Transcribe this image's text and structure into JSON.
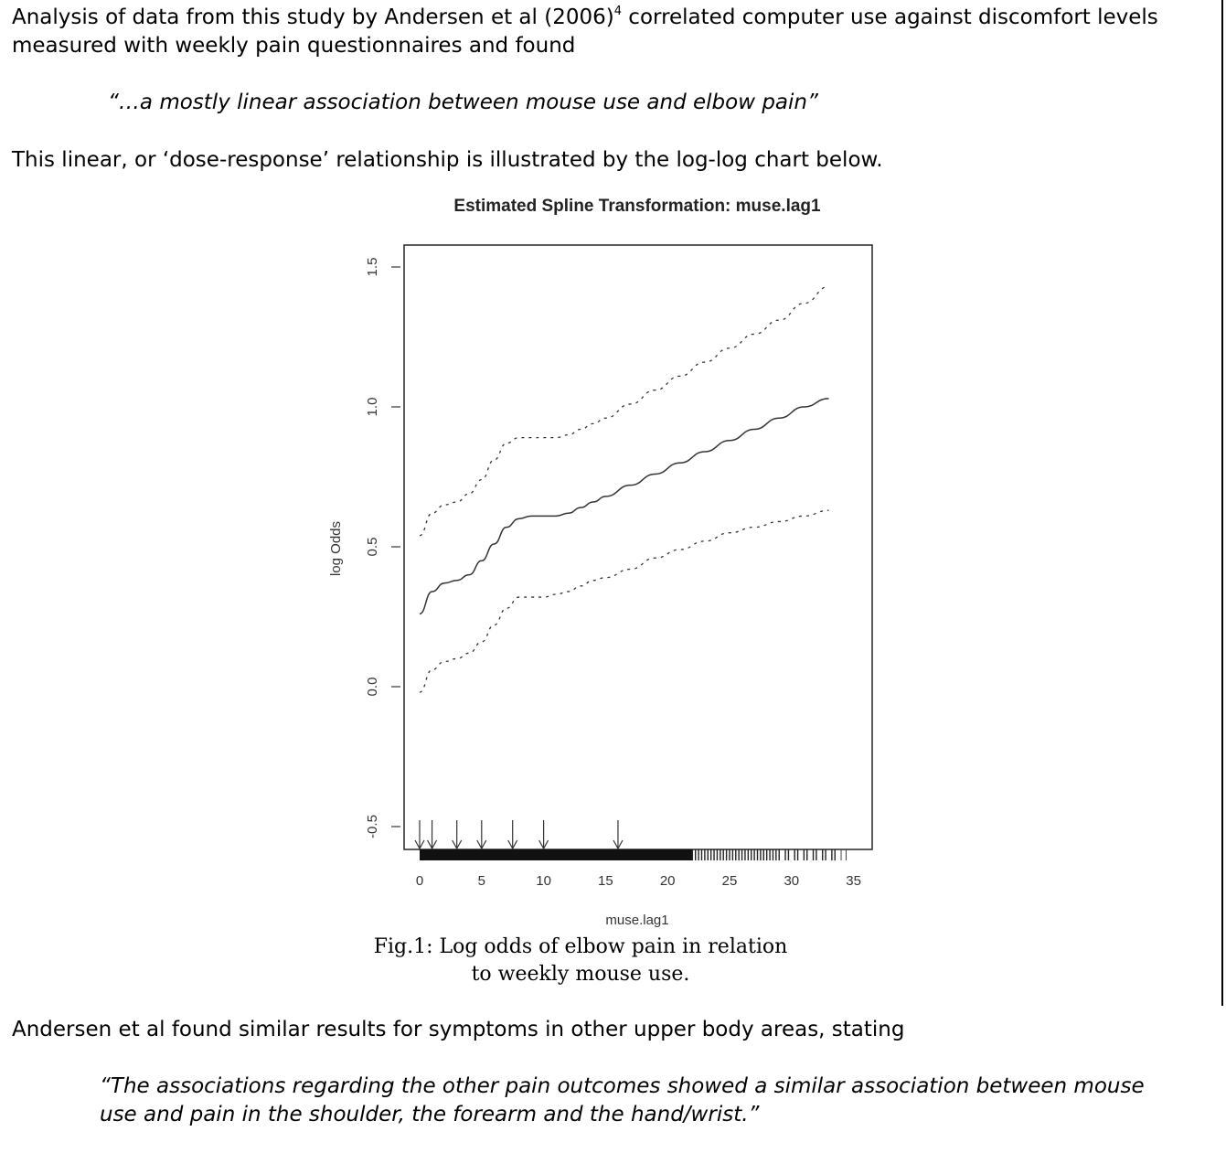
{
  "intro": {
    "line1_pre": "Analysis of data from this study by Andersen et al (2006)",
    "ref": "4",
    "line1_post": " correlated computer use against discomfort levels",
    "line2": "measured with weekly pain questionnaires and found"
  },
  "quote1": "“…a mostly linear association between mouse use and elbow pain”",
  "para2": "This linear, or ‘dose-response’ relationship is illustrated by the log-log chart below.",
  "figure": {
    "caption_line1": "Fig.1: Log odds of elbow pain in relation",
    "caption_line2": "to weekly mouse use."
  },
  "para3": "Andersen et al found similar results for symptoms in other upper body areas, stating",
  "quote2": {
    "line1": "“The associations regarding the other pain outcomes showed a similar association between mouse",
    "line2": "use and pain in the shoulder, the forearm and the hand/wrist.”"
  },
  "chart_data": {
    "type": "line",
    "title": "Estimated Spline Transformation: muse.lag1",
    "xlabel": "muse.lag1",
    "ylabel": "log Odds",
    "xlim": [
      0,
      35
    ],
    "ylim": [
      -0.5,
      1.5
    ],
    "x_ticks": [
      "0",
      "5",
      "10",
      "15",
      "20",
      "25",
      "30",
      "35"
    ],
    "y_ticks": [
      "-0.5",
      "0.0",
      "0.5",
      "1.0",
      "1.5"
    ],
    "series": [
      {
        "role": "estimate",
        "style": "solid",
        "x": [
          0,
          1,
          2,
          3,
          4,
          5,
          6,
          7,
          8,
          9,
          10,
          11,
          12,
          13,
          14,
          15,
          17,
          19,
          21,
          23,
          25,
          27,
          29,
          31,
          33
        ],
        "y": [
          0.26,
          0.34,
          0.37,
          0.38,
          0.4,
          0.45,
          0.51,
          0.57,
          0.6,
          0.61,
          0.61,
          0.61,
          0.62,
          0.64,
          0.66,
          0.68,
          0.72,
          0.76,
          0.8,
          0.84,
          0.88,
          0.92,
          0.96,
          1.0,
          1.03
        ]
      },
      {
        "role": "upper bound",
        "style": "dashed",
        "x": [
          0,
          1,
          2,
          3,
          4,
          5,
          6,
          7,
          8,
          9,
          10,
          11,
          12,
          13,
          14,
          15,
          17,
          19,
          21,
          23,
          25,
          27,
          29,
          31,
          33
        ],
        "y": [
          0.54,
          0.62,
          0.65,
          0.66,
          0.69,
          0.74,
          0.81,
          0.87,
          0.89,
          0.89,
          0.89,
          0.89,
          0.9,
          0.92,
          0.94,
          0.96,
          1.01,
          1.06,
          1.11,
          1.16,
          1.21,
          1.26,
          1.31,
          1.37,
          1.43
        ]
      },
      {
        "role": "lower bound",
        "style": "dashed",
        "x": [
          0,
          1,
          2,
          3,
          4,
          5,
          6,
          7,
          8,
          9,
          10,
          11,
          12,
          13,
          14,
          15,
          17,
          19,
          21,
          23,
          25,
          27,
          29,
          31,
          33
        ],
        "y": [
          -0.02,
          0.06,
          0.09,
          0.1,
          0.12,
          0.16,
          0.22,
          0.28,
          0.32,
          0.32,
          0.32,
          0.33,
          0.34,
          0.36,
          0.38,
          0.39,
          0.42,
          0.46,
          0.49,
          0.52,
          0.55,
          0.57,
          0.59,
          0.61,
          0.63
        ]
      }
    ],
    "arrow_x": [
      0,
      1,
      3,
      5,
      7.5,
      10,
      16
    ],
    "grid": false,
    "legend": "none"
  }
}
